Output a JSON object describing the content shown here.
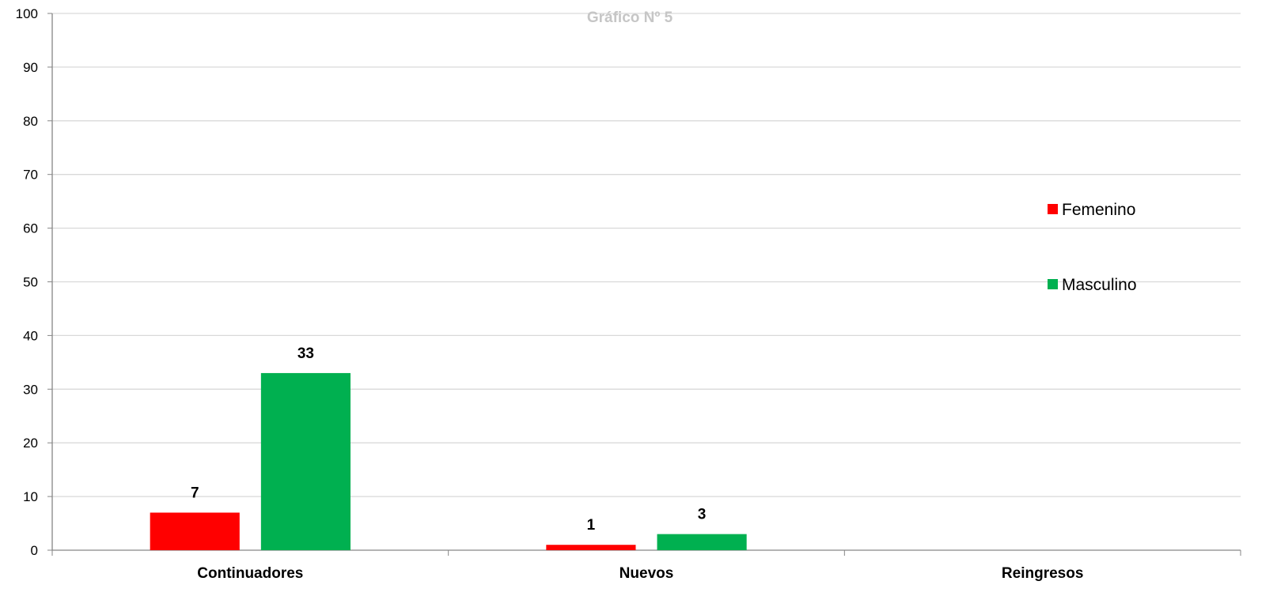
{
  "chart_data": {
    "type": "bar",
    "title": "Gráfico Nº 5",
    "categories": [
      "Continuadores",
      "Nuevos",
      "Reingresos"
    ],
    "series": [
      {
        "name": "Femenino",
        "color": "#ff0000",
        "values": [
          7,
          1,
          null
        ]
      },
      {
        "name": "Masculino",
        "color": "#00b050",
        "values": [
          33,
          3,
          null
        ]
      }
    ],
    "ylim": [
      0,
      100
    ],
    "yticks": [
      0,
      10,
      20,
      30,
      40,
      50,
      60,
      70,
      80,
      90,
      100
    ],
    "grid": true,
    "legend_position": "right"
  }
}
